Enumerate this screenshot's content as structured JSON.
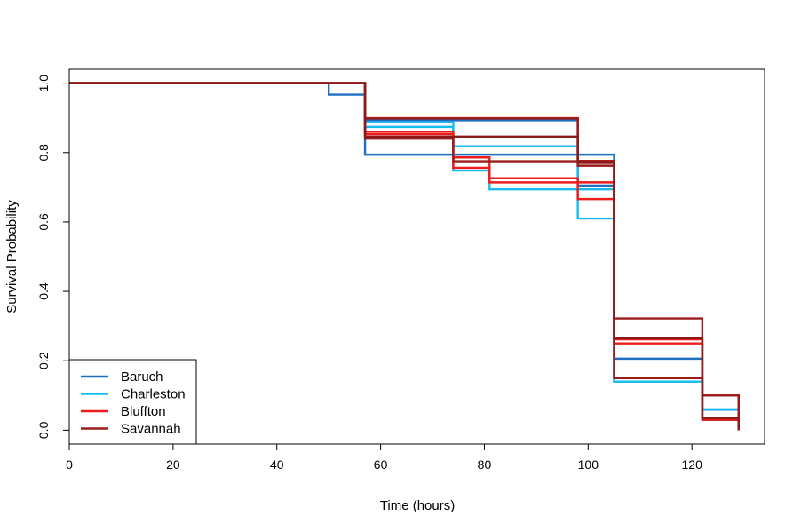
{
  "chart_data": {
    "type": "line",
    "title": "",
    "xlabel": "Time (hours)",
    "ylabel": "Survival Probability",
    "xlim": [
      0,
      134
    ],
    "ylim": [
      -0.04,
      1.04
    ],
    "x_ticks": [
      0,
      20,
      40,
      60,
      80,
      100,
      120
    ],
    "y_ticks": [
      0.0,
      0.2,
      0.4,
      0.6,
      0.8,
      1.0
    ],
    "y_tick_labels": [
      "0.0",
      "0.2",
      "0.4",
      "0.6",
      "0.8",
      "1.0"
    ],
    "grid": false,
    "legend_position": "bottom-left",
    "legend": [
      "Baruch",
      "Charleston",
      "Bluffton",
      "Savannah"
    ],
    "series": [
      {
        "name": "Baruch",
        "color": "#1e6fc2",
        "x": [
          0,
          50,
          57,
          105,
          122,
          129
        ],
        "y": [
          1.0,
          0.967,
          0.794,
          0.206,
          0.059,
          0.0
        ]
      },
      {
        "name": "Baruch",
        "color": "#1e6fc2",
        "x": [
          0,
          57,
          98,
          105,
          122,
          129
        ],
        "y": [
          1.0,
          0.893,
          0.705,
          0.15,
          0.03,
          0.0
        ]
      },
      {
        "name": "Charleston",
        "color": "#18bdf0",
        "x": [
          0,
          57,
          74,
          98,
          105,
          122,
          129
        ],
        "y": [
          1.0,
          0.887,
          0.818,
          0.61,
          0.14,
          0.06,
          0.0
        ]
      },
      {
        "name": "Charleston",
        "color": "#18bdf0",
        "x": [
          0,
          57,
          74,
          81,
          105,
          122,
          129
        ],
        "y": [
          1.0,
          0.874,
          0.748,
          0.694,
          0.14,
          0.06,
          0.0
        ]
      },
      {
        "name": "Bluffton",
        "color": "#ee1c1c",
        "x": [
          0,
          57,
          74,
          81,
          98,
          105,
          122,
          129
        ],
        "y": [
          1.0,
          0.86,
          0.786,
          0.726,
          0.666,
          0.25,
          0.035,
          0.0
        ]
      },
      {
        "name": "Bluffton",
        "color": "#ee1c1c",
        "x": [
          0,
          57,
          74,
          81,
          98,
          105,
          122,
          129
        ],
        "y": [
          1.0,
          0.853,
          0.756,
          0.714,
          0.714,
          0.266,
          0.035,
          0.0
        ]
      },
      {
        "name": "Bluffton",
        "color": "#e31a1a",
        "x": [
          0,
          57,
          98,
          105,
          122,
          129
        ],
        "y": [
          1.0,
          0.899,
          0.776,
          0.262,
          0.03,
          0.0
        ]
      },
      {
        "name": "Savannah",
        "color": "#9b1b1b",
        "x": [
          0,
          57,
          98,
          105,
          122,
          129
        ],
        "y": [
          1.0,
          0.898,
          0.77,
          0.322,
          0.1,
          0.0
        ]
      },
      {
        "name": "Savannah",
        "color": "#9b1b1b",
        "x": [
          0,
          57,
          74,
          98,
          105,
          122,
          129
        ],
        "y": [
          1.0,
          0.84,
          0.775,
          0.762,
          0.15,
          0.1,
          0.0
        ]
      },
      {
        "name": "Savannah",
        "color": "#8b1a1a",
        "x": [
          0,
          57,
          98,
          105,
          122,
          129
        ],
        "y": [
          1.0,
          0.846,
          0.775,
          0.265,
          0.035,
          0.0
        ]
      }
    ]
  }
}
